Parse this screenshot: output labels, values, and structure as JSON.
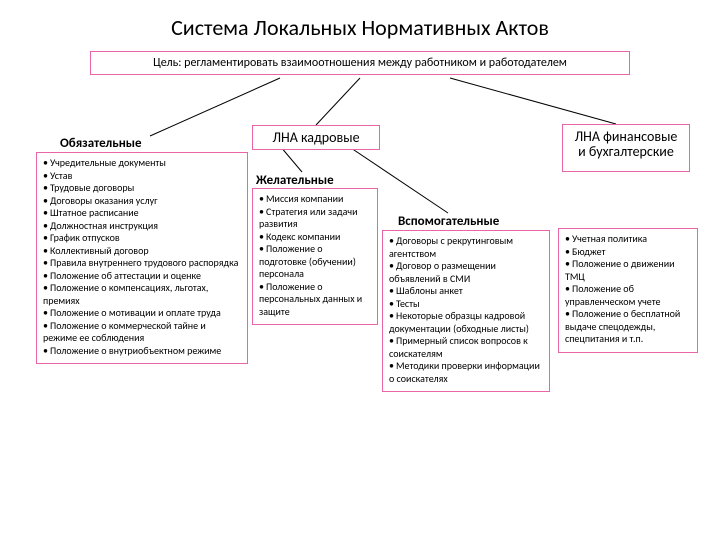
{
  "colors": {
    "border": "#e865a8",
    "text": "#000000",
    "background": "#ffffff",
    "connector": "#000000"
  },
  "title": "Система Локальных Нормативных Актов",
  "goal": "Цель: регламентировать взаимоотношения между работником и работодателем",
  "headers": {
    "kadr": "ЛНА кадровые",
    "fin": "ЛНА финансовые и бухгалтерские"
  },
  "subheaders": {
    "oblig": "Обязательные",
    "desir": "Желательные",
    "aux": "Вспомогательные"
  },
  "lists": {
    "oblig": [
      "Учредительные документы",
      "Устав",
      "Трудовые договоры",
      "Договоры оказания услуг",
      "Штатное расписание",
      "Должностная инструкция",
      "График отпусков",
      "Коллективный договор",
      "Правила внутреннего трудового распорядка",
      "Положение об аттестации и оценке",
      "Положение о компенсациях, льготах, премиях",
      "Положение о мотивации и оплате труда",
      "Положение о коммерческой тайне и режиме ее соблюдения",
      "Положение о внутриобъектном режиме"
    ],
    "desir": [
      "Миссия компании",
      "Стратегия или задачи развития",
      "Кодекс компании",
      "Положение о подготовке (обучении) персонала",
      "Положение о персональных данных и защите"
    ],
    "aux": [
      "Договоры с рекрутинговым агентством",
      "Договор о размещении объявлений в СМИ",
      "Шаблоны анкет",
      "Тесты",
      "Некоторые образцы кадровой документации (обходные листы)",
      "Примерный список вопросов к соискателям",
      "Методики проверки информации о соискателях"
    ],
    "fin": [
      "Учетная политика",
      "Бюджет",
      "Положение о движении ТМЦ",
      "Положение об управленческом учете",
      "Положение о бесплатной выдаче спецодежды, спецпитания и т.п."
    ]
  }
}
